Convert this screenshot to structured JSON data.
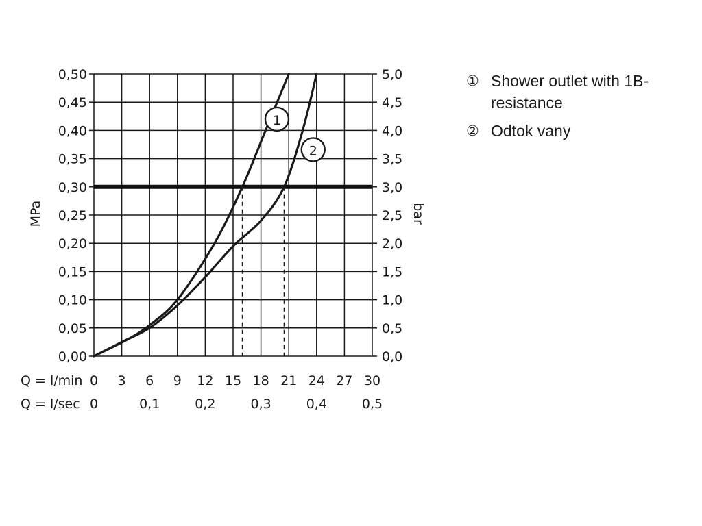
{
  "chart_data": {
    "type": "line",
    "left_axis": {
      "label": "MPa",
      "ticks": [
        "0,00",
        "0,05",
        "0,10",
        "0,15",
        "0,20",
        "0,25",
        "0,30",
        "0,35",
        "0,40",
        "0,45",
        "0,50"
      ],
      "ylim": [
        0,
        0.5
      ]
    },
    "right_axis": {
      "label": "bar",
      "ticks": [
        "0,0",
        "0,5",
        "1,0",
        "1,5",
        "2,0",
        "2,5",
        "3,0",
        "3,5",
        "4,0",
        "4,5",
        "5,0"
      ],
      "ylim": [
        0,
        5
      ]
    },
    "x_axis_lmin": {
      "label": "Q = l/min",
      "ticks": [
        "0",
        "3",
        "6",
        "9",
        "12",
        "15",
        "18",
        "21",
        "24",
        "27",
        "30"
      ],
      "xlim": [
        0,
        30
      ]
    },
    "x_axis_lsec": {
      "label": "Q = l/sec",
      "ticks": [
        "0",
        "0,1",
        "0,2",
        "0,3",
        "0,4",
        "0,5"
      ]
    },
    "grid": true,
    "reference_line": {
      "y": 0.3,
      "style": "thick"
    },
    "series": [
      {
        "marker": "1",
        "x": [
          0,
          2,
          4,
          6,
          9,
          13,
          16,
          18.5,
          21
        ],
        "y": [
          0,
          0.016,
          0.033,
          0.055,
          0.1,
          0.2,
          0.3,
          0.4,
          0.5
        ]
      },
      {
        "marker": "2",
        "x": [
          0,
          3,
          6,
          9,
          12,
          15,
          18,
          20.5,
          22.5,
          24
        ],
        "y": [
          0,
          0.025,
          0.05,
          0.09,
          0.14,
          0.195,
          0.24,
          0.3,
          0.4,
          0.5
        ]
      }
    ],
    "drop_lines": [
      {
        "x": 16,
        "y": 0.3
      },
      {
        "x": 20.5,
        "y": 0.3
      }
    ]
  },
  "legend": [
    {
      "mark": "①",
      "text": "Shower outlet with 1B-resistance"
    },
    {
      "mark": "②",
      "text": "Odtok vany"
    }
  ]
}
